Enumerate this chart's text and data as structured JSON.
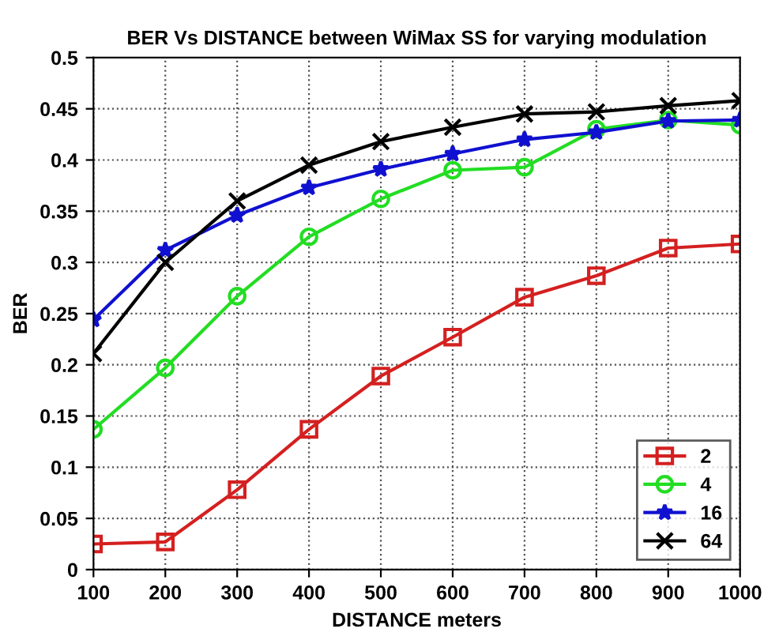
{
  "chart_data": {
    "type": "line",
    "title": "BER Vs DISTANCE between WiMax SS for varying modulation",
    "xlabel": "DISTANCE meters",
    "ylabel": "BER",
    "x": [
      100,
      200,
      300,
      400,
      500,
      600,
      700,
      800,
      900,
      1000
    ],
    "series": [
      {
        "name": "2",
        "color": "#d42020",
        "marker": "square",
        "values": [
          0.025,
          0.027,
          0.078,
          0.137,
          0.189,
          0.227,
          0.266,
          0.287,
          0.314,
          0.318
        ]
      },
      {
        "name": "4",
        "color": "#22dd22",
        "marker": "circle",
        "values": [
          0.137,
          0.197,
          0.267,
          0.325,
          0.362,
          0.39,
          0.393,
          0.43,
          0.439,
          0.434
        ]
      },
      {
        "name": "16",
        "color": "#1010d0",
        "marker": "star",
        "values": [
          0.244,
          0.312,
          0.346,
          0.373,
          0.391,
          0.406,
          0.42,
          0.427,
          0.438,
          0.439
        ]
      },
      {
        "name": "64",
        "color": "#000000",
        "marker": "cross",
        "values": [
          0.211,
          0.3,
          0.36,
          0.395,
          0.418,
          0.432,
          0.445,
          0.447,
          0.453,
          0.458
        ]
      }
    ],
    "xlim": [
      100,
      1000
    ],
    "ylim": [
      0,
      0.5
    ],
    "xticks": [
      100,
      200,
      300,
      400,
      500,
      600,
      700,
      800,
      900,
      1000
    ],
    "yticks": [
      0,
      0.05,
      0.1,
      0.15,
      0.2,
      0.25,
      0.3,
      0.35,
      0.4,
      0.45,
      0.5
    ],
    "grid": true,
    "legend": "bottom right",
    "line_style": "solid"
  }
}
